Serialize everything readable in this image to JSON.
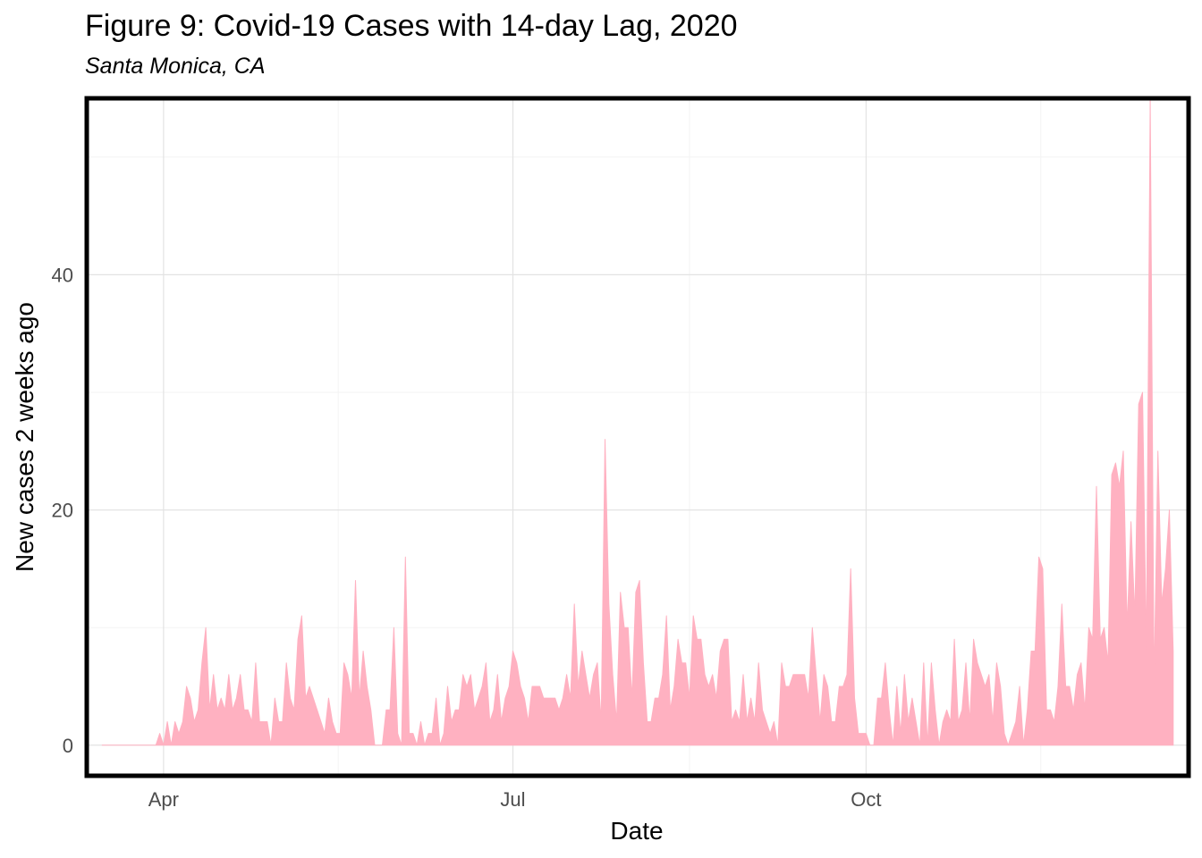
{
  "chart_data": {
    "type": "area",
    "title": "Figure 9: Covid-19 Cases with 14-day Lag, 2020",
    "subtitle": "Santa Monica, CA",
    "xlabel": "Date",
    "ylabel": "New cases 2 weeks ago",
    "fill_color": "#FFB1C1",
    "grid": true,
    "x_start": "2020-03-16",
    "x_ticks": [
      {
        "label": "Apr",
        "date": "2020-04-01"
      },
      {
        "label": "Jul",
        "date": "2020-07-01"
      },
      {
        "label": "Oct",
        "date": "2020-10-01"
      }
    ],
    "y_ticks": [
      0,
      20,
      40
    ],
    "ylim": [
      -2.6,
      55
    ],
    "values": [
      0,
      0,
      0,
      0,
      0,
      0,
      0,
      0,
      0,
      0,
      0,
      0,
      0,
      0,
      0,
      1,
      0,
      2,
      0,
      2,
      1,
      2,
      5,
      4,
      2,
      3,
      7,
      10,
      3,
      6,
      3,
      4,
      3,
      6,
      3,
      4,
      6,
      3,
      3,
      2,
      7,
      2,
      2,
      2,
      0,
      4,
      2,
      2,
      7,
      4,
      3,
      9,
      11,
      4,
      5,
      4,
      3,
      2,
      1,
      4,
      2,
      1,
      1,
      7,
      6,
      4,
      14,
      4,
      8,
      5,
      3,
      0,
      0,
      0,
      3,
      3,
      10,
      1,
      0,
      16,
      1,
      1,
      0,
      2,
      0,
      1,
      1,
      4,
      0,
      1,
      5,
      2,
      3,
      3,
      6,
      5,
      6,
      3,
      4,
      5,
      7,
      2,
      3,
      6,
      2,
      4,
      5,
      8,
      7,
      5,
      4,
      2,
      5,
      5,
      5,
      4,
      4,
      4,
      4,
      3,
      4,
      6,
      4,
      12,
      5,
      8,
      6,
      4,
      6,
      7,
      2,
      26,
      12,
      6,
      2,
      13,
      10,
      10,
      4,
      13,
      14,
      7,
      2,
      2,
      4,
      4,
      6,
      11,
      3,
      5,
      9,
      7,
      7,
      4,
      11,
      9,
      9,
      6,
      5,
      6,
      4,
      8,
      9,
      9,
      2,
      3,
      2,
      6,
      2,
      4,
      2,
      7,
      3,
      2,
      1,
      2,
      0,
      7,
      5,
      5,
      6,
      6,
      6,
      6,
      4,
      10,
      6,
      2,
      6,
      5,
      2,
      2,
      5,
      5,
      6,
      15,
      4,
      1,
      1,
      1,
      0,
      0,
      4,
      4,
      7,
      3,
      0,
      5,
      1,
      6,
      2,
      4,
      2,
      0,
      7,
      0,
      7,
      3,
      0,
      2,
      3,
      2,
      9,
      2,
      3,
      7,
      2,
      9,
      7,
      6,
      5,
      6,
      2,
      7,
      5,
      1,
      0,
      1,
      2,
      5,
      0,
      3,
      8,
      8,
      16,
      15,
      3,
      3,
      2,
      5,
      12,
      5,
      5,
      3,
      6,
      7,
      3,
      10,
      9,
      22,
      9,
      10,
      7,
      23,
      24,
      22,
      25,
      10,
      19,
      11,
      29,
      30,
      8,
      55,
      5,
      25,
      12,
      15,
      20,
      8
    ]
  }
}
